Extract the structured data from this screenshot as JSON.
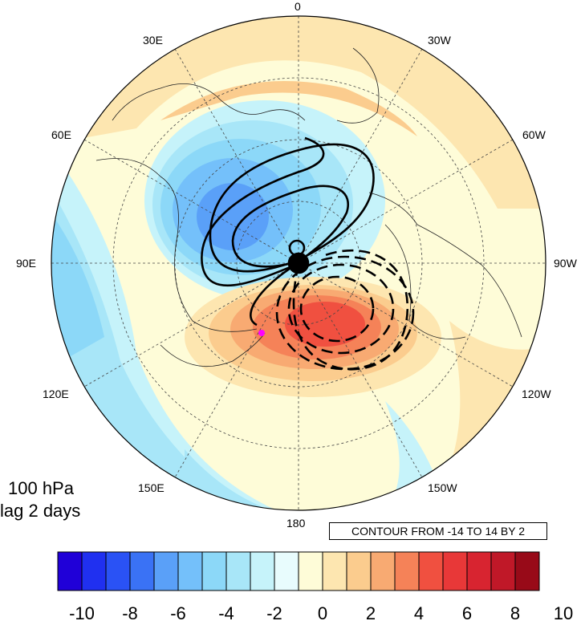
{
  "level_label": "100 hPa",
  "lag_label": "lag 2 days",
  "contour_note": "CONTOUR FROM -14 TO 14 BY 2",
  "longitude_labels": {
    "top": "0",
    "bottom": "180",
    "left": "90E",
    "right": "90W",
    "upper_left_1": "30E",
    "upper_left_2": "60E",
    "lower_left_1": "120E",
    "lower_left_2": "150E",
    "upper_right_1": "30W",
    "upper_right_2": "60W",
    "lower_right_1": "120W",
    "lower_right_2": "150W"
  },
  "colorbar": {
    "colors": [
      "#2000d8",
      "#2030f0",
      "#2a52f5",
      "#3a72f5",
      "#5aa0f8",
      "#74c0fa",
      "#8cd8f8",
      "#a8e6f8",
      "#c6f3fa",
      "#e8fcfd",
      "#fefcd8",
      "#fde6b0",
      "#fbcc8e",
      "#f8aa72",
      "#f58258",
      "#f05040",
      "#e83838",
      "#d82430",
      "#c01828",
      "#980a18"
    ],
    "tick_labels": [
      "-10",
      "-8",
      "-6",
      "-4",
      "-2",
      "0",
      "2",
      "4",
      "6",
      "8",
      "10"
    ]
  },
  "map": {
    "projection": "north polar stereographic",
    "marker_color": "#ff00ff"
  }
}
